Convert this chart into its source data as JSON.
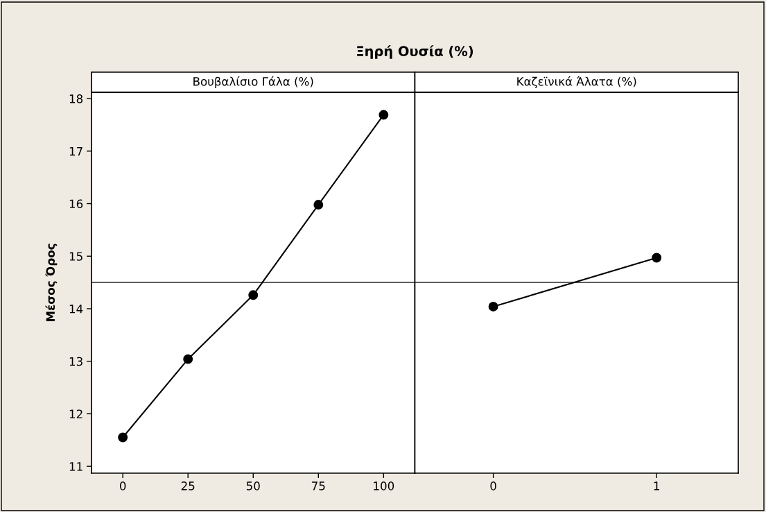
{
  "chart_data": [
    {
      "type": "line",
      "title": "Ξηρή Ουσία (%)",
      "subtitle": "Βουβαλίσιο Γάλα (%)",
      "ylabel": "Μέσος Όρος",
      "x": [
        0,
        25,
        50,
        75,
        100
      ],
      "xlim": [
        -12,
        112
      ],
      "xticks": [
        0,
        25,
        50,
        75,
        100
      ],
      "ylim": [
        10.87,
        18.12
      ],
      "yticks": [
        11,
        12,
        13,
        14,
        15,
        16,
        17,
        18
      ],
      "series": [
        {
          "color": "#000000",
          "values": [
            11.55,
            13.04,
            14.26,
            15.98,
            17.69
          ]
        }
      ],
      "ref_lines": [
        {
          "axis": "y",
          "value": 14.5,
          "color": "#505050"
        }
      ],
      "marker": "circle",
      "line_style": "solid",
      "grid": false,
      "legend": false
    },
    {
      "type": "line",
      "subtitle": "Καζεϊνικά Άλατα (%)",
      "x": [
        0,
        1
      ],
      "xlim": [
        -0.48,
        1.5
      ],
      "xticks": [
        0,
        1
      ],
      "ylim": [
        10.87,
        18.12
      ],
      "tick_labels": "x",
      "series": [
        {
          "color": "#000000",
          "values": [
            14.04,
            14.97
          ]
        }
      ],
      "ref_lines": [
        {
          "axis": "y",
          "value": 14.5,
          "color": "#505050"
        }
      ],
      "marker": "circle",
      "line_style": "solid",
      "grid": false,
      "legend": false
    }
  ]
}
